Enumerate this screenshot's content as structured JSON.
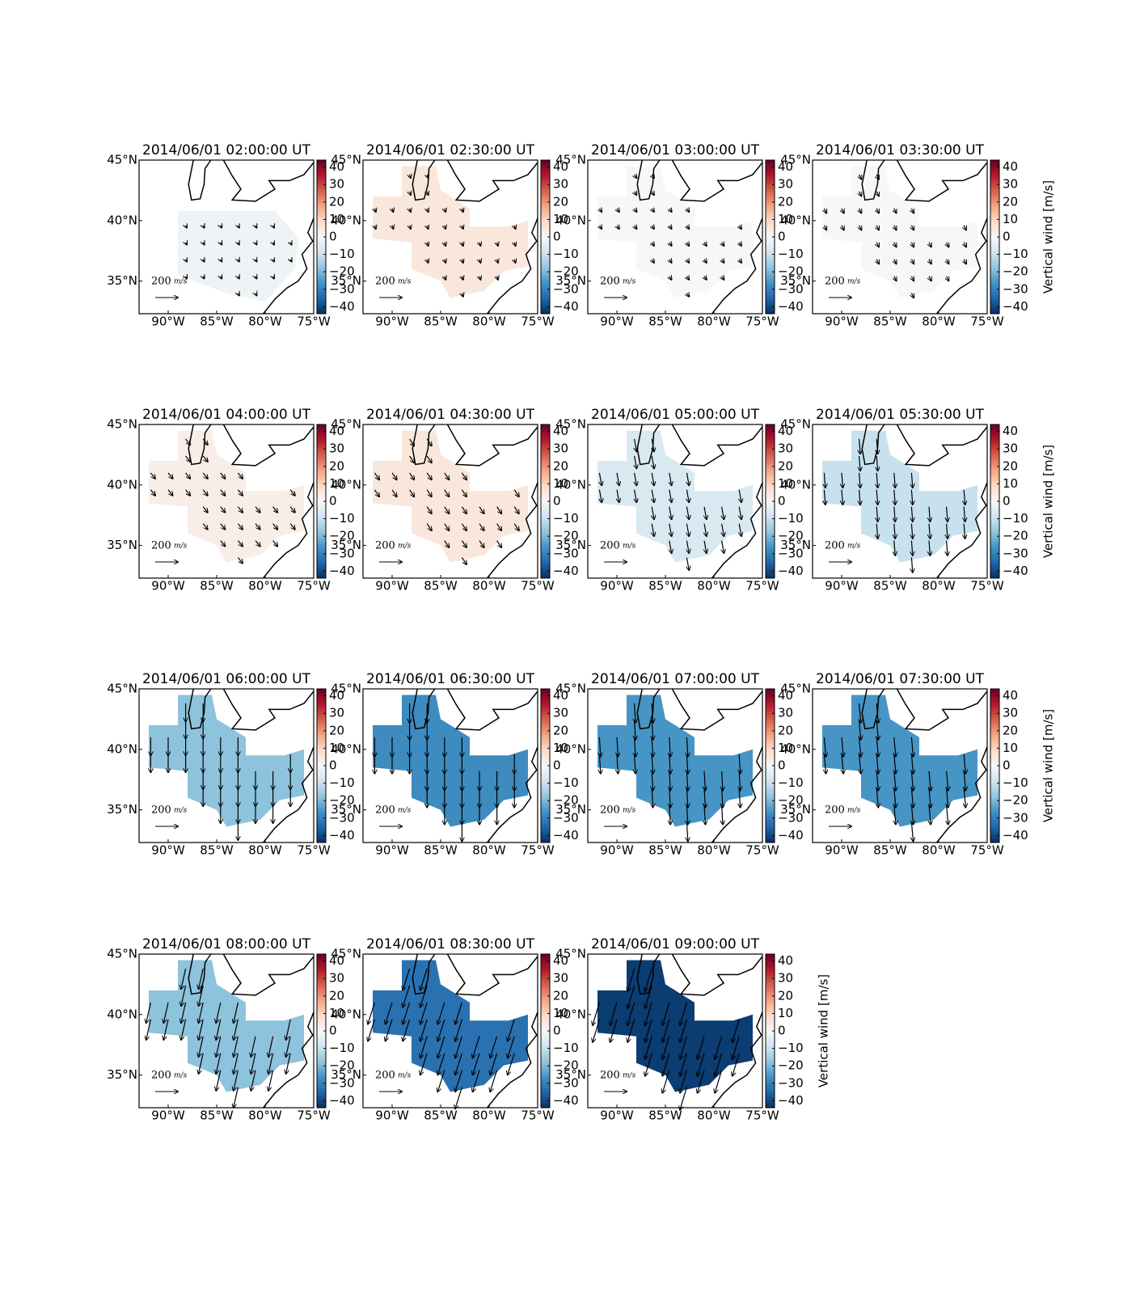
{
  "chart_data": [
    {
      "type": "map",
      "title": "2014/06/01 02:00:00 UT",
      "value": -2,
      "u": 10,
      "v": -20
    },
    {
      "type": "map",
      "title": "2014/06/01 02:30:00 UT",
      "value": 5,
      "u": 10,
      "v": -30
    },
    {
      "type": "map",
      "title": "2014/06/01 03:00:00 UT",
      "value": 0,
      "u": 20,
      "v": -30
    },
    {
      "type": "map",
      "title": "2014/06/01 03:30:00 UT",
      "value": 0,
      "u": 20,
      "v": -40
    },
    {
      "type": "map",
      "title": "2014/06/01 04:00:00 UT",
      "value": 3,
      "u": 40,
      "v": -50
    },
    {
      "type": "map",
      "title": "2014/06/01 04:30:00 UT",
      "value": 5,
      "u": 40,
      "v": -60
    },
    {
      "type": "map",
      "title": "2014/06/01 05:00:00 UT",
      "value": -7,
      "u": 20,
      "v": -110
    },
    {
      "type": "map",
      "title": "2014/06/01 05:30:00 UT",
      "value": -10,
      "u": 10,
      "v": -130
    },
    {
      "type": "map",
      "title": "2014/06/01 06:00:00 UT",
      "value": -18,
      "u": 0,
      "v": -160
    },
    {
      "type": "map",
      "title": "2014/06/01 06:30:00 UT",
      "value": -28,
      "u": 0,
      "v": -170
    },
    {
      "type": "map",
      "title": "2014/06/01 07:00:00 UT",
      "value": -26,
      "u": 10,
      "v": -170
    },
    {
      "type": "map",
      "title": "2014/06/01 07:30:00 UT",
      "value": -26,
      "u": 15,
      "v": -170
    },
    {
      "type": "map",
      "title": "2014/06/01 08:00:00 UT",
      "value": -18,
      "u": -40,
      "v": -180
    },
    {
      "type": "map",
      "title": "2014/06/01 08:30:00 UT",
      "value": -33,
      "u": -60,
      "v": -190
    },
    {
      "type": "map",
      "title": "2014/06/01 09:00:00 UT",
      "value": -42,
      "u": -60,
      "v": -200
    }
  ],
  "axes": {
    "xlim": [
      -93,
      -75
    ],
    "ylim": [
      32.3,
      45
    ],
    "xticks": [
      {
        "value": -90,
        "label": "90°W"
      },
      {
        "value": -85,
        "label": "85°W"
      },
      {
        "value": -80,
        "label": "80°W"
      },
      {
        "value": -75,
        "label": "75°W"
      }
    ],
    "yticks": [
      {
        "value": 35,
        "label": "35°N"
      },
      {
        "value": 40,
        "label": "40°N"
      },
      {
        "value": 45,
        "label": "45°N"
      }
    ],
    "colorbar_lim": [
      -44,
      44
    ],
    "colorbar_ticks": [
      {
        "value": -40,
        "label": "−40"
      },
      {
        "value": -30,
        "label": "−30"
      },
      {
        "value": -20,
        "label": "−20"
      },
      {
        "value": -10,
        "label": "−10"
      },
      0,
      10,
      20,
      30,
      40
    ],
    "colorbar_label": "Vertical wind [m/s]",
    "colormap": [
      "#053061",
      "#2166ac",
      "#4393c3",
      "#92c5de",
      "#d1e5f0",
      "#f7f7f7",
      "#fddbc7",
      "#f4a582",
      "#d6604d",
      "#b2182b",
      "#67001f"
    ],
    "reference_speed": 200,
    "reference_unit": "m/s"
  }
}
